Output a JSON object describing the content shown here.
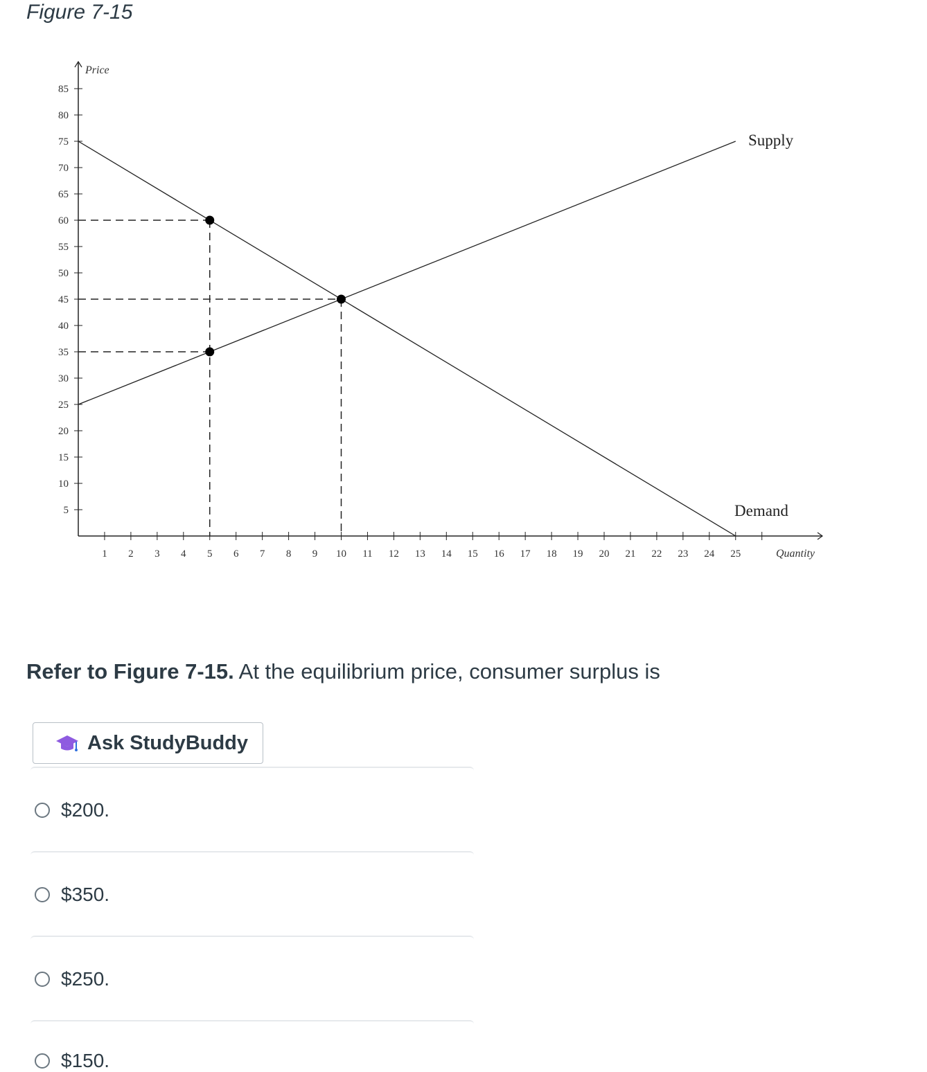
{
  "figure": {
    "title": "Figure 7-15"
  },
  "chart_data": {
    "type": "line",
    "xlabel": "Quantity",
    "ylabel": "Price",
    "xlim": [
      0,
      26
    ],
    "ylim": [
      0,
      85
    ],
    "x_ticks": [
      1,
      2,
      3,
      4,
      5,
      6,
      7,
      8,
      9,
      10,
      11,
      12,
      13,
      14,
      15,
      16,
      17,
      18,
      19,
      20,
      21,
      22,
      23,
      24,
      25
    ],
    "y_ticks": [
      5,
      10,
      15,
      20,
      25,
      30,
      35,
      40,
      45,
      50,
      55,
      60,
      65,
      70,
      75,
      80,
      85
    ],
    "series": [
      {
        "name": "Supply",
        "points": [
          [
            0,
            25
          ],
          [
            25,
            75
          ]
        ]
      },
      {
        "name": "Demand",
        "points": [
          [
            0,
            75
          ],
          [
            25,
            0
          ]
        ]
      }
    ],
    "marked_points": [
      [
        5,
        60
      ],
      [
        10,
        45
      ],
      [
        5,
        35
      ]
    ],
    "guide_lines": [
      {
        "from": [
          0,
          60
        ],
        "to": [
          5,
          60
        ]
      },
      {
        "from": [
          0,
          45
        ],
        "to": [
          10,
          45
        ]
      },
      {
        "from": [
          0,
          35
        ],
        "to": [
          5,
          35
        ]
      },
      {
        "from": [
          5,
          60
        ],
        "to": [
          5,
          0
        ]
      },
      {
        "from": [
          10,
          45
        ],
        "to": [
          10,
          0
        ]
      }
    ],
    "grid": false
  },
  "question": {
    "ref": "Refer to Figure 7-15.",
    "text": "At the equilibrium price, consumer surplus is"
  },
  "ask_button": {
    "label": "Ask StudyBuddy",
    "icon": "graduation-cap-icon",
    "icon_color": "#8e5be0"
  },
  "options": [
    "$200.",
    "$350.",
    "$250.",
    "$150."
  ]
}
